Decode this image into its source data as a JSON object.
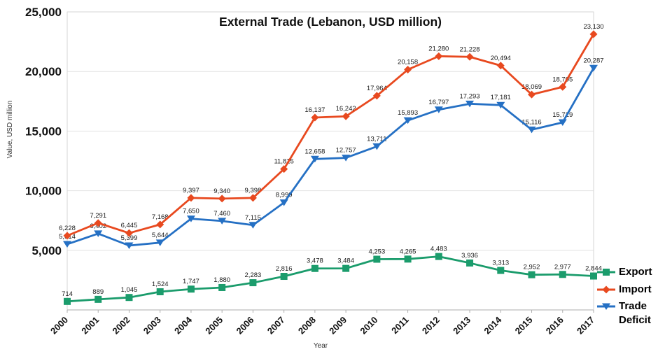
{
  "chart_data": {
    "type": "line",
    "title": "External Trade (Lebanon, USD million)",
    "xlabel": "Year",
    "ylabel": "Value, USD million",
    "ylim": [
      0,
      25000
    ],
    "ytick_interval": 5000,
    "grid": "horizontal",
    "legend_position": "right-bottom",
    "categories": [
      "2000",
      "2001",
      "2002",
      "2003",
      "2004",
      "2005",
      "2006",
      "2007",
      "2008",
      "2009",
      "2010",
      "2011",
      "2012",
      "2013",
      "2014",
      "2015",
      "2016",
      "2017"
    ],
    "series": [
      {
        "name": "Export",
        "color": "#1b9c6c",
        "marker": "square",
        "values": [
          714,
          889,
          1045,
          1524,
          1747,
          1880,
          2283,
          2816,
          3478,
          3484,
          4253,
          4265,
          4483,
          3936,
          3313,
          2952,
          2977,
          2844
        ]
      },
      {
        "name": "Import",
        "color": "#e8491f",
        "marker": "diamond",
        "values": [
          6228,
          7291,
          6445,
          7168,
          9397,
          9340,
          9398,
          11815,
          16137,
          16242,
          17964,
          20158,
          21280,
          21228,
          20494,
          18069,
          18705,
          23130
        ]
      },
      {
        "name": "Trade Deficit",
        "color": "#2570c4",
        "marker": "triangle-down",
        "values": [
          5514,
          6402,
          5399,
          5644,
          7650,
          7460,
          7115,
          8999,
          12658,
          12757,
          13711,
          15893,
          16797,
          17293,
          17181,
          15116,
          15729,
          20287
        ]
      }
    ],
    "colors": {
      "gridline": "#e2e2e2",
      "plot_border": "#d6d6d6",
      "axis_line": "#adadad"
    }
  }
}
